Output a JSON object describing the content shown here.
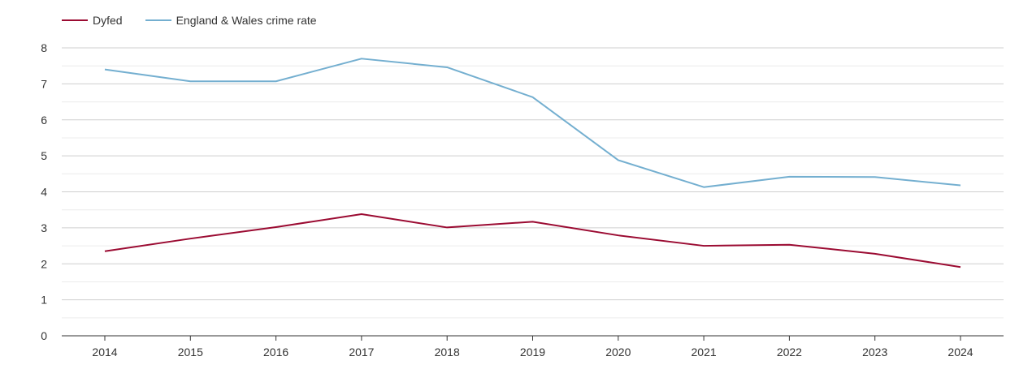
{
  "colors": {
    "dyfed": "#9b0b32",
    "england_wales": "#74afd0",
    "grid_major": "#cfcfcf",
    "grid_minor": "#ececec",
    "axis": "#333333"
  },
  "chart_data": {
    "type": "line",
    "title": "",
    "xlabel": "",
    "ylabel": "",
    "categories": [
      "2014",
      "2015",
      "2016",
      "2017",
      "2018",
      "2019",
      "2020",
      "2021",
      "2022",
      "2023",
      "2024"
    ],
    "ylim": [
      0,
      8
    ],
    "yticks": [
      0,
      1,
      2,
      3,
      4,
      5,
      6,
      7,
      8
    ],
    "grid": true,
    "legend_position": "top-left",
    "series": [
      {
        "name": "Dyfed",
        "color": "#9b0b32",
        "values": [
          2.35,
          2.7,
          3.02,
          3.38,
          3.01,
          3.17,
          2.79,
          2.5,
          2.53,
          2.28,
          1.91
        ]
      },
      {
        "name": "England & Wales crime rate",
        "color": "#74afd0",
        "values": [
          7.4,
          7.07,
          7.07,
          7.7,
          7.46,
          6.63,
          4.88,
          4.13,
          4.42,
          4.41,
          4.18
        ]
      }
    ]
  }
}
